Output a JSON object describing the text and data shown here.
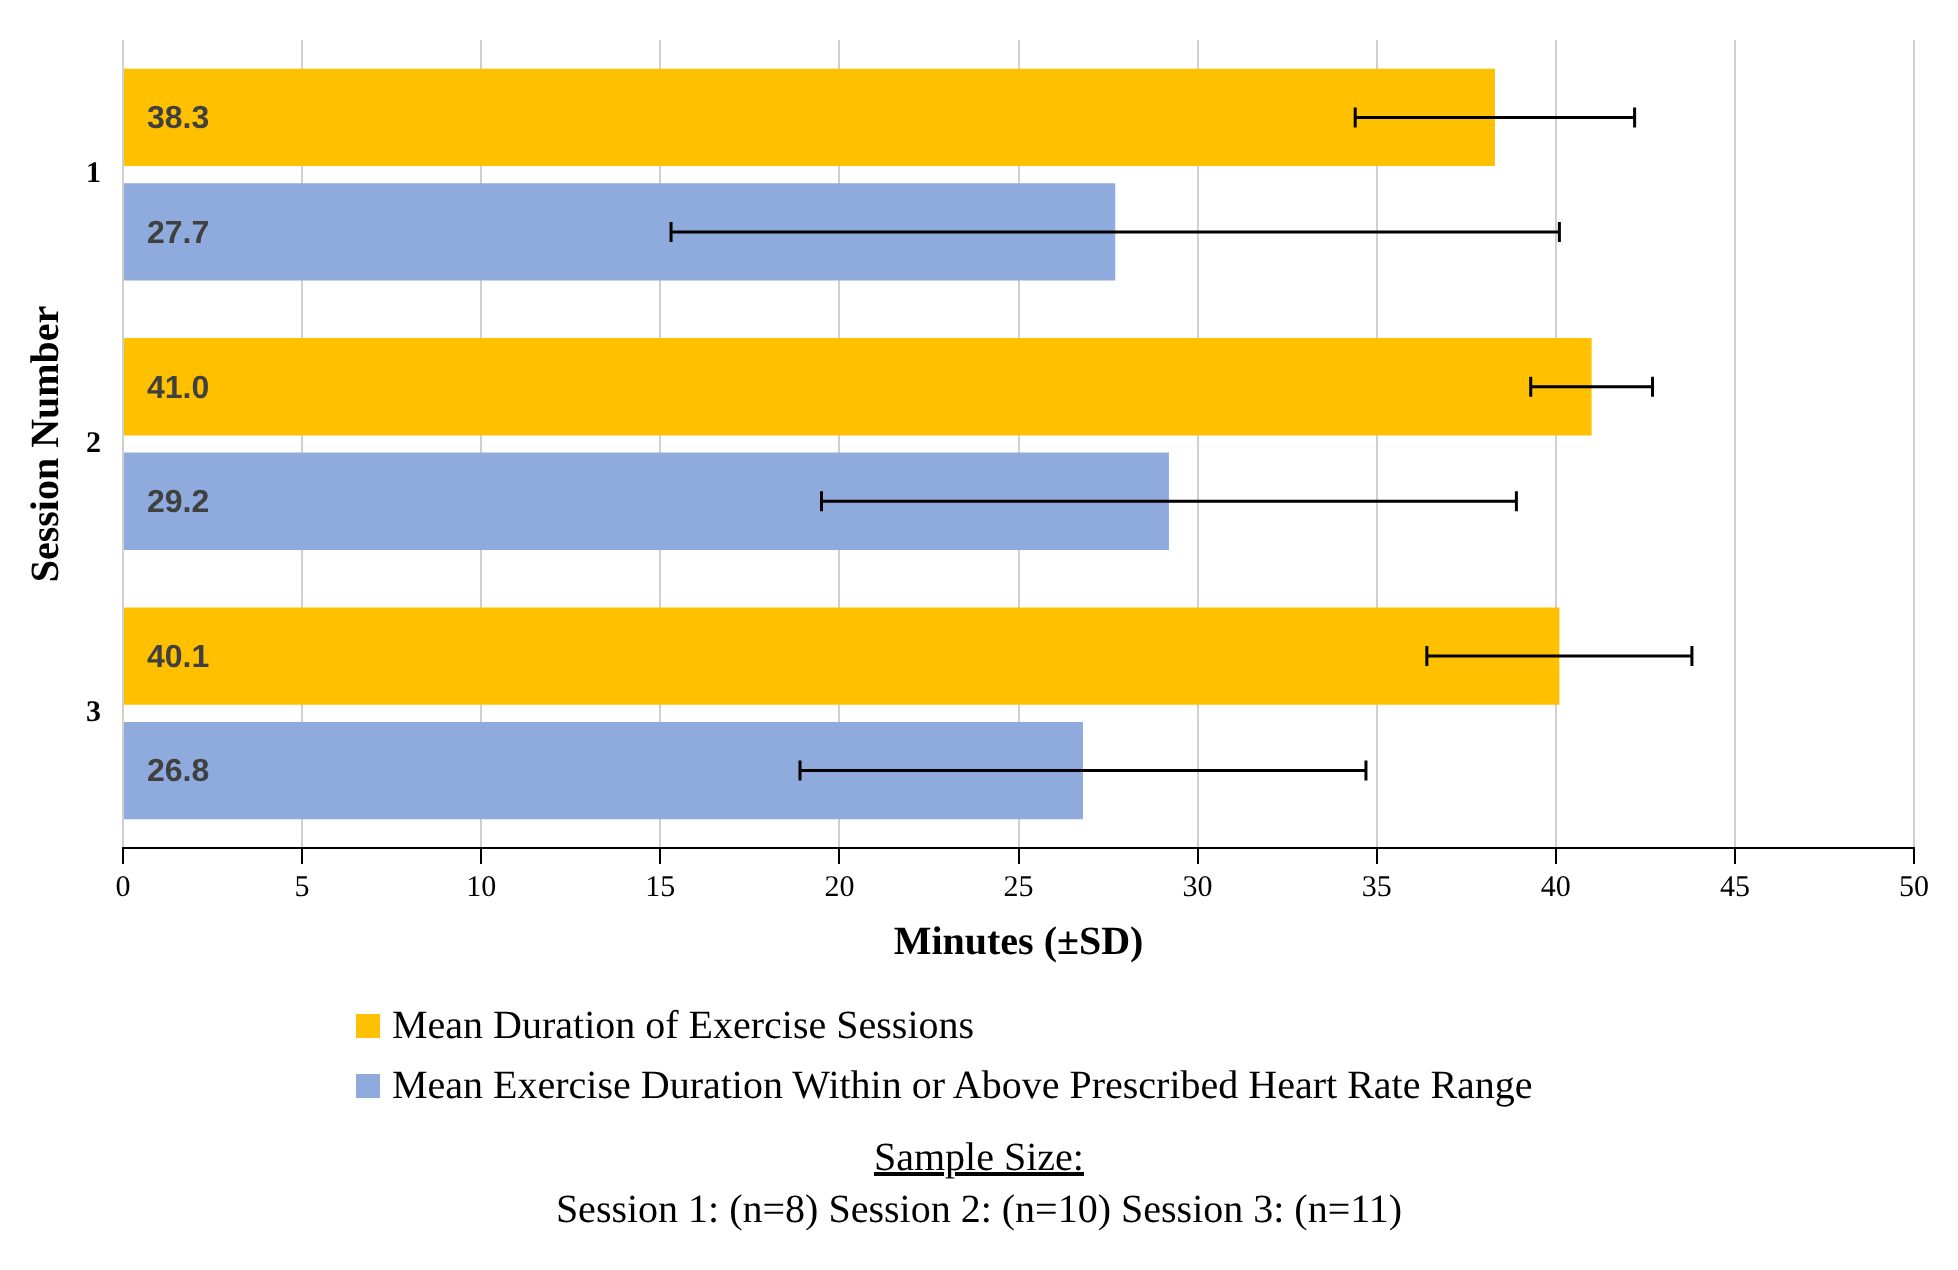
{
  "chart_data": {
    "type": "bar",
    "orientation": "horizontal",
    "xlabel": "Minutes (±SD)",
    "ylabel": "Session Number",
    "categories": [
      "1",
      "2",
      "3"
    ],
    "series": [
      {
        "name": "Mean Duration of Exercise Sessions",
        "color": "#ffc000",
        "values": [
          38.3,
          41.0,
          40.1
        ],
        "value_labels": [
          "38.3",
          "41.0",
          "40.1"
        ],
        "errors": [
          3.9,
          1.7,
          3.7
        ]
      },
      {
        "name": "Mean Exercise Duration Within or Above Prescribed Heart Rate Range",
        "color": "#8faadc",
        "values": [
          27.7,
          29.2,
          26.8
        ],
        "value_labels": [
          "27.7",
          "29.2",
          "26.8"
        ],
        "errors": [
          12.4,
          9.7,
          7.9
        ]
      }
    ],
    "xlim": [
      0,
      50
    ],
    "xticks": [
      0,
      5,
      10,
      15,
      20,
      25,
      30,
      35,
      40,
      45,
      50
    ],
    "grid": "x",
    "legend": "bottom",
    "annotations": [
      "Sample Size:",
      "Session 1: (n=8) Session 2: (n=10) Session 3: (n=11)"
    ]
  }
}
